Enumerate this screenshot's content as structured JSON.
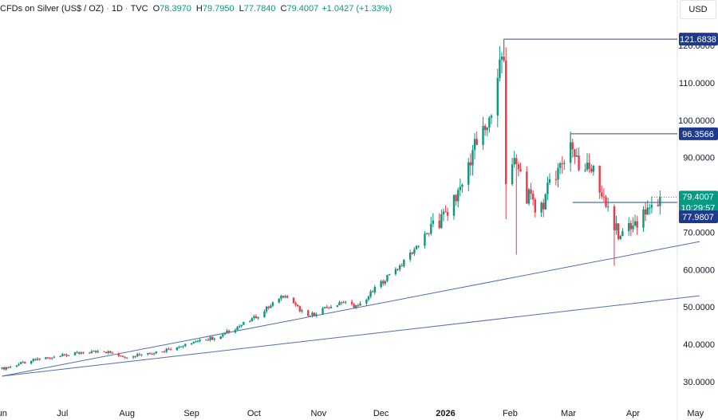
{
  "header": {
    "title": "CFDs on Silver (US$ / OZ)",
    "interval": "1D",
    "source": "TVC",
    "open_label": "O",
    "open_value": "78.3970",
    "high_label": "H",
    "high_value": "79.7950",
    "low_label": "L",
    "low_value": "77.7840",
    "close_label": "C",
    "close_value": "79.4007",
    "change": "+1.0427 (+1.33%)"
  },
  "currency": "USD",
  "colors": {
    "up": "#089981",
    "down": "#f23645",
    "line": "#2a4a8c",
    "label_bg": "#1e3a8a",
    "price_bg": "#089981"
  },
  "chart_data": {
    "type": "candlestick",
    "y_ticks": [
      "30.0000",
      "40.0000",
      "50.0000",
      "60.0000",
      "70.0000",
      "80.0000",
      "90.0000",
      "100.0000",
      "110.0000",
      "120.0000"
    ],
    "ylim": [
      28.5,
      124
    ],
    "x_ticks": [
      "Jun",
      "Jul",
      "Aug",
      "Sep",
      "Oct",
      "Nov",
      "Dec",
      "2026",
      "Feb",
      "Mar",
      "Apr",
      "May"
    ],
    "price_labels": [
      {
        "text": "121.6838",
        "value": 121.6838,
        "kind": "level"
      },
      {
        "text": "96.3566",
        "value": 96.3566,
        "kind": "level"
      },
      {
        "text": "79.4007",
        "value": 79.4007,
        "kind": "last",
        "countdown": "10:29:57"
      },
      {
        "text": "77.9807",
        "value": 77.9807,
        "kind": "level"
      }
    ],
    "anchors": [
      [
        "2025-06-02",
        33.5
      ],
      [
        "2025-06-20",
        36.2
      ],
      [
        "2025-07-20",
        38.3
      ],
      [
        "2025-07-31",
        36.8
      ],
      [
        "2025-08-15",
        38.0
      ],
      [
        "2025-08-28",
        39.6
      ],
      [
        "2025-09-15",
        42.3
      ],
      [
        "2025-10-01",
        47.0
      ],
      [
        "2025-10-15",
        53.0
      ],
      [
        "2025-10-27",
        47.5
      ],
      [
        "2025-11-12",
        51.5
      ],
      [
        "2025-11-20",
        50.0
      ],
      [
        "2025-12-01",
        56.5
      ],
      [
        "2025-12-12",
        62.0
      ],
      [
        "2025-12-22",
        69.0
      ],
      [
        "2025-12-29",
        72.5
      ],
      [
        "2026-01-06",
        79.0
      ],
      [
        "2026-01-14",
        92.0
      ],
      [
        "2026-01-22",
        100.0
      ],
      [
        "2026-01-27",
        115.0
      ],
      [
        "2026-01-29",
        116.0
      ],
      [
        "2026-01-30",
        85.0
      ],
      [
        "2026-02-04",
        88.0
      ],
      [
        "2026-02-09",
        80.0
      ],
      [
        "2026-02-14",
        75.0
      ],
      [
        "2026-02-20",
        82.0
      ],
      [
        "2026-02-27",
        90.0
      ],
      [
        "2026-03-02",
        94.0
      ],
      [
        "2026-03-06",
        87.0
      ],
      [
        "2026-03-10",
        89.5
      ],
      [
        "2026-03-16",
        82.0
      ],
      [
        "2026-03-20",
        75.0
      ],
      [
        "2026-03-25",
        69.0
      ],
      [
        "2026-03-31",
        71.0
      ],
      [
        "2026-04-06",
        74.0
      ],
      [
        "2026-04-10",
        78.0
      ],
      [
        "2026-04-14",
        79.4
      ]
    ],
    "extreme_lows": [
      [
        "2026-01-30",
        73.5
      ],
      [
        "2026-02-04",
        64.0
      ],
      [
        "2026-03-23",
        61.0
      ]
    ],
    "levels": [
      {
        "value": 121.6838,
        "from": "2026-01-29"
      },
      {
        "value": 96.3566,
        "from": "2026-03-02"
      },
      {
        "value": 77.9807,
        "from": "2026-03-03"
      }
    ],
    "trendlines": [
      {
        "from": [
          "2025-06-02",
          31.5
        ],
        "to": [
          "2026-05-03",
          67.5
        ]
      },
      {
        "from": [
          "2025-06-02",
          31.5
        ],
        "to": [
          "2026-05-03",
          53.0
        ]
      }
    ]
  }
}
